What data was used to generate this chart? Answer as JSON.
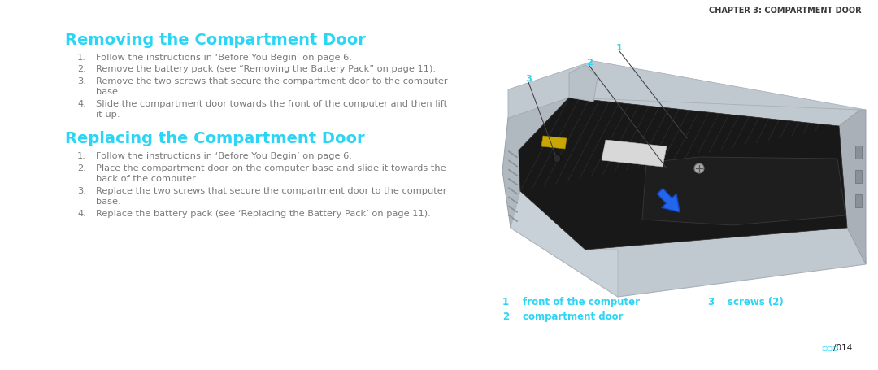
{
  "title1": "Removing the Compartment Door",
  "title2": "Replacing the Compartment Door",
  "chapter_header": "CHAPTER 3: COMPARTMENT DOOR",
  "title_color": "#2bd5f5",
  "chapter_color": "#3a3a3a",
  "body_color": "#7a7a7a",
  "cyan_color": "#2bd5f5",
  "bg_color": "#ffffff",
  "remove_steps": [
    [
      "Follow the instructions in ‘Before You Begin’ on page 6.",
      false
    ],
    [
      "Remove the battery pack (see “Removing the Battery Pack” on page 11).",
      false
    ],
    [
      "Remove the two screws that secure the compartment door to the computer",
      "base.",
      true
    ],
    [
      "Slide the compartment door towards the front of the computer and then lift",
      "it up.",
      true
    ]
  ],
  "replace_steps": [
    [
      "Follow the instructions in ‘Before You Begin’ on page 6.",
      false
    ],
    [
      "Place the compartment door on the computer base and slide it towards the",
      "back of the computer.",
      true
    ],
    [
      "Replace the two screws that secure the compartment door to the computer",
      "base.",
      true
    ],
    [
      "Replace the battery pack (see ‘Replacing the Battery Pack’ on page 11).",
      false
    ]
  ],
  "legend": [
    {
      "num": "1",
      "label": "front of the computer",
      "col": 0
    },
    {
      "num": "2",
      "label": "compartment door",
      "col": 0
    },
    {
      "num": "3",
      "label": "screws (2)",
      "col": 1
    }
  ],
  "page_num": "014",
  "title_fontsize": 14.0,
  "body_fontsize": 8.2,
  "chapter_fontsize": 7.0,
  "legend_fontsize": 8.5,
  "num_fontsize": 8.2
}
